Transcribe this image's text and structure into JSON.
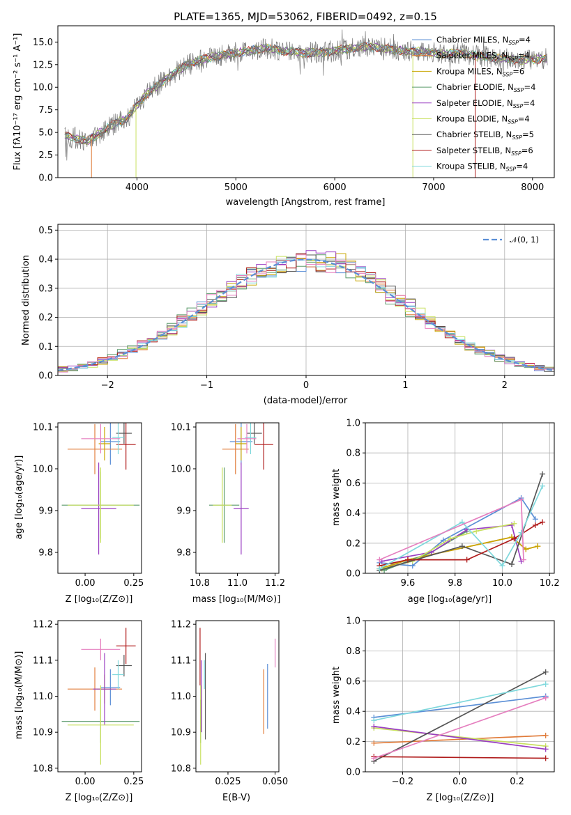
{
  "colors": {
    "Chabrier MILES": "#5b8fd6",
    "Salpeter MILES": "#e07b39",
    "Kroupa MILES": "#c8a600",
    "Chabrier ELODIE": "#5a9a6a",
    "Salpeter ELODIE": "#9a3fc2",
    "Kroupa ELODIE": "#c8e060",
    "Chabrier STELIB": "#555555",
    "Salpeter STELIB": "#b01c1c",
    "Kroupa STELIB": "#7fd8dc",
    "pink": "#e57fbf",
    "data": "#7a7a7a",
    "normal": "#5b8fd6"
  },
  "chart_data": [
    {
      "id": "spectrum",
      "type": "line",
      "title": "PLATE=1365, MJD=53062, FIBERID=0492, z=0.15",
      "xlabel": "wavelength [Angstrom, rest frame]",
      "ylabel": "Flux [fλ10⁻¹⁷ erg cm⁻² s⁻¹ A⁻¹]",
      "xlim": [
        3200,
        8220
      ],
      "ylim": [
        0,
        16.8
      ],
      "xticks": [
        "4000",
        "5000",
        "6000",
        "7000",
        "8000"
      ],
      "yticks": [
        "0.0",
        "2.5",
        "5.0",
        "7.5",
        "10.0",
        "12.5",
        "15.0"
      ],
      "continuum": {
        "x": [
          3300,
          3500,
          3700,
          3900,
          4100,
          4300,
          4500,
          4700,
          4900,
          5100,
          5300,
          5500,
          5700,
          5900,
          6100,
          6300,
          6500,
          6700,
          6900,
          7100,
          7300,
          7500,
          7700,
          7900,
          8100
        ],
        "y": [
          4.6,
          4.0,
          5.5,
          6.6,
          9.3,
          11.0,
          12.5,
          13.2,
          13.6,
          14.0,
          14.3,
          14.0,
          13.8,
          13.9,
          14.2,
          14.5,
          14.3,
          14.0,
          13.9,
          13.7,
          13.7,
          13.4,
          13.2,
          13.0,
          13.2
        ]
      },
      "legend": [
        {
          "name": "Chabrier MILES",
          "n": "4"
        },
        {
          "name": "Salpeter MILES",
          "n": "4"
        },
        {
          "name": "Kroupa MILES",
          "n": "6"
        },
        {
          "name": "Chabrier ELODIE",
          "n": "4"
        },
        {
          "name": "Salpeter ELODIE",
          "n": "4"
        },
        {
          "name": "Kroupa ELODIE",
          "n": "4"
        },
        {
          "name": "Chabrier STELIB",
          "n": "5"
        },
        {
          "name": "Salpeter STELIB",
          "n": "6"
        },
        {
          "name": "Kroupa STELIB",
          "n": "4"
        }
      ],
      "legend_suffix": "N",
      "legend_sub": "SSP",
      "legend_placement": "right"
    },
    {
      "id": "residuals",
      "type": "step",
      "xlabel": "(data-model)/error",
      "ylabel": "Normed distribution",
      "xlim": [
        -2.5,
        2.5
      ],
      "ylim": [
        0,
        0.52
      ],
      "xticks": [
        "−2",
        "−1",
        "0",
        "1",
        "2"
      ],
      "yticks": [
        "0.0",
        "0.1",
        "0.2",
        "0.3",
        "0.4",
        "0.5"
      ],
      "legend": "𝒩(0, 1)",
      "legend_placement": "top-right",
      "grid": true
    },
    {
      "id": "age_vs_Z",
      "type": "errorbar",
      "xlabel": "Z [log₁₀(Z/Z⊙)]",
      "ylabel": "age  [log₁₀(age/yr)]",
      "xlim": [
        -0.14,
        0.29
      ],
      "ylim": [
        9.75,
        10.11
      ],
      "xticks": [
        "0.00",
        "0.25"
      ],
      "yticks": [
        "9.8",
        "9.9",
        "10.0",
        "10.1"
      ],
      "points": [
        {
          "s": "Chabrier MILES",
          "x": 0.13,
          "y": 10.065,
          "xe": 0.05,
          "ye": 0.055
        },
        {
          "s": "Salpeter MILES",
          "x": 0.05,
          "y": 10.047,
          "xe": 0.14,
          "ye": 0.06
        },
        {
          "s": "Kroupa MILES",
          "x": 0.1,
          "y": 10.06,
          "xe": 0.03,
          "ye": 0.04
        },
        {
          "s": "Chabrier ELODIE",
          "x": 0.08,
          "y": 9.913,
          "xe": 0.2,
          "ye": 0.08
        },
        {
          "s": "Salpeter ELODIE",
          "x": 0.07,
          "y": 9.905,
          "xe": 0.09,
          "ye": 0.11
        },
        {
          "s": "Kroupa ELODIE",
          "x": 0.08,
          "y": 9.913,
          "xe": 0.17,
          "ye": 0.09
        },
        {
          "s": "Chabrier STELIB",
          "x": 0.2,
          "y": 10.085,
          "xe": 0.04,
          "ye": 0.025
        },
        {
          "s": "Salpeter STELIB",
          "x": 0.21,
          "y": 10.058,
          "xe": 0.05,
          "ye": 0.06
        },
        {
          "s": "Kroupa STELIB",
          "x": 0.17,
          "y": 10.075,
          "xe": 0.03,
          "ye": 0.04
        },
        {
          "s": "pink",
          "x": 0.08,
          "y": 10.072,
          "xe": 0.1,
          "ye": 0.035
        }
      ]
    },
    {
      "id": "age_vs_mass",
      "type": "errorbar",
      "xlabel": "mass [log₁₀(M/M⊙)]",
      "ylabel": "",
      "xlim": [
        10.78,
        11.22
      ],
      "ylim": [
        9.75,
        10.11
      ],
      "xticks": [
        "10.8",
        "11.0",
        "11.2"
      ],
      "yticks": [
        "9.8",
        "9.9",
        "10.0",
        "10.1"
      ],
      "points": [
        {
          "s": "Chabrier MILES",
          "x": 11.02,
          "y": 10.065,
          "xe": 0.06,
          "ye": 0.055
        },
        {
          "s": "Salpeter MILES",
          "x": 10.99,
          "y": 10.047,
          "xe": 0.07,
          "ye": 0.06
        },
        {
          "s": "Kroupa MILES",
          "x": 11.02,
          "y": 10.06,
          "xe": 0.03,
          "ye": 0.04
        },
        {
          "s": "Chabrier ELODIE",
          "x": 10.93,
          "y": 9.913,
          "xe": 0.08,
          "ye": 0.09
        },
        {
          "s": "Salpeter ELODIE",
          "x": 11.02,
          "y": 9.905,
          "xe": 0.04,
          "ye": 0.11
        },
        {
          "s": "Kroupa ELODIE",
          "x": 10.92,
          "y": 9.913,
          "xe": 0.05,
          "ye": 0.09
        },
        {
          "s": "Chabrier STELIB",
          "x": 11.09,
          "y": 10.085,
          "xe": 0.04,
          "ye": 0.025
        },
        {
          "s": "Salpeter STELIB",
          "x": 11.14,
          "y": 10.058,
          "xe": 0.05,
          "ye": 0.06
        },
        {
          "s": "Kroupa STELIB",
          "x": 11.07,
          "y": 10.075,
          "xe": 0.03,
          "ye": 0.04
        },
        {
          "s": "pink",
          "x": 11.05,
          "y": 10.072,
          "xe": 0.05,
          "ye": 0.035
        }
      ]
    },
    {
      "id": "weight_vs_age",
      "type": "line",
      "xlabel": "age  [log₁₀(age/yr)]",
      "ylabel": "mass weight",
      "xlim": [
        9.42,
        10.22
      ],
      "ylim": [
        0,
        1.0
      ],
      "xticks": [
        "9.6",
        "9.8",
        "10.0",
        "10.2"
      ],
      "yticks": [
        "0.0",
        "0.2",
        "0.4",
        "0.6",
        "0.8",
        "1.0"
      ],
      "grid": true,
      "series": [
        {
          "s": "Chabrier MILES",
          "x": [
            9.48,
            9.62,
            9.75,
            10.08,
            10.14
          ],
          "y": [
            0.07,
            0.05,
            0.22,
            0.5,
            0.36
          ]
        },
        {
          "s": "Salpeter MILES",
          "x": [
            9.49,
            9.6,
            10.04,
            10.1,
            10.15
          ],
          "y": [
            0.03,
            0.09,
            0.24,
            0.16,
            0.18
          ]
        },
        {
          "s": "Kroupa MILES",
          "x": [
            9.48,
            9.6,
            10.04,
            10.1,
            10.15
          ],
          "y": [
            0.03,
            0.09,
            0.24,
            0.16,
            0.18
          ]
        },
        {
          "s": "Chabrier ELODIE",
          "x": [
            9.5,
            9.7,
            9.85
          ],
          "y": [
            0.02,
            0.14,
            0.28
          ]
        },
        {
          "s": "Salpeter ELODIE",
          "x": [
            9.49,
            9.7,
            9.85,
            10.04,
            10.08
          ],
          "y": [
            0.08,
            0.14,
            0.29,
            0.32,
            0.08
          ]
        },
        {
          "s": "Kroupa ELODIE",
          "x": [
            9.49,
            9.62,
            9.78,
            9.89,
            10.05
          ],
          "y": [
            0.03,
            0.08,
            0.23,
            0.28,
            0.33
          ]
        },
        {
          "s": "Chabrier STELIB",
          "x": [
            9.48,
            9.83,
            10.04,
            10.17
          ],
          "y": [
            0.02,
            0.18,
            0.06,
            0.66
          ]
        },
        {
          "s": "Salpeter STELIB",
          "x": [
            9.48,
            9.6,
            9.85,
            10.05,
            10.14,
            10.17
          ],
          "y": [
            0.05,
            0.09,
            0.09,
            0.23,
            0.32,
            0.34
          ]
        },
        {
          "s": "Kroupa STELIB",
          "x": [
            9.48,
            9.83,
            10.0,
            10.08,
            10.17
          ],
          "y": [
            0.03,
            0.34,
            0.05,
            0.27,
            0.58
          ]
        },
        {
          "s": "pink",
          "x": [
            9.48,
            10.08,
            10.09
          ],
          "y": [
            0.09,
            0.49,
            0.09
          ]
        }
      ]
    },
    {
      "id": "mass_vs_Z",
      "type": "errorbar",
      "xlabel": "Z [log₁₀(Z/Z⊙)]",
      "ylabel": "mass [log₁₀(M/M⊙)]",
      "xlim": [
        -0.14,
        0.29
      ],
      "ylim": [
        10.79,
        11.21
      ],
      "xticks": [
        "0.00",
        "0.25"
      ],
      "yticks": [
        "10.8",
        "10.9",
        "11.0",
        "11.1",
        "11.2"
      ],
      "points": [
        {
          "s": "Chabrier MILES",
          "x": 0.13,
          "y": 11.025,
          "xe": 0.05,
          "ye": 0.05
        },
        {
          "s": "Salpeter MILES",
          "x": 0.05,
          "y": 11.02,
          "xe": 0.14,
          "ye": 0.06
        },
        {
          "s": "Kroupa MILES",
          "x": 0.1,
          "y": 11.02,
          "xe": 0.04,
          "ye": 0.04
        },
        {
          "s": "Chabrier ELODIE",
          "x": 0.08,
          "y": 10.93,
          "xe": 0.2,
          "ye": 0.06
        },
        {
          "s": "Salpeter ELODIE",
          "x": 0.1,
          "y": 11.02,
          "xe": 0.06,
          "ye": 0.1
        },
        {
          "s": "Kroupa ELODIE",
          "x": 0.08,
          "y": 10.92,
          "xe": 0.17,
          "ye": 0.11
        },
        {
          "s": "Chabrier STELIB",
          "x": 0.2,
          "y": 11.085,
          "xe": 0.04,
          "ye": 0.03
        },
        {
          "s": "Salpeter STELIB",
          "x": 0.21,
          "y": 11.14,
          "xe": 0.05,
          "ye": 0.05
        },
        {
          "s": "Kroupa STELIB",
          "x": 0.17,
          "y": 11.06,
          "xe": 0.03,
          "ye": 0.04
        },
        {
          "s": "pink",
          "x": 0.08,
          "y": 11.13,
          "xe": 0.1,
          "ye": 0.03
        }
      ]
    },
    {
      "id": "mass_vs_ebv",
      "type": "errorbar",
      "xlabel": "E(B-V)",
      "ylabel": "",
      "xlim": [
        0.008,
        0.052
      ],
      "ylim": [
        10.79,
        11.21
      ],
      "xticks": [
        "0.025",
        "0.050"
      ],
      "yticks": [
        "10.8",
        "10.9",
        "11.0",
        "11.1",
        "11.2"
      ],
      "points": [
        {
          "s": "Chabrier MILES",
          "x": 0.046,
          "y": 11.0,
          "xe": 0.0,
          "ye": 0.09
        },
        {
          "s": "Salpeter MILES",
          "x": 0.044,
          "y": 10.985,
          "xe": 0.0,
          "ye": 0.09
        },
        {
          "s": "Chabrier ELODIE",
          "x": 0.0105,
          "y": 10.93,
          "xe": 0.0,
          "ye": 0.06
        },
        {
          "s": "Salpeter ELODIE",
          "x": 0.011,
          "y": 11.0,
          "xe": 0.0,
          "ye": 0.1
        },
        {
          "s": "Kroupa ELODIE",
          "x": 0.0105,
          "y": 10.92,
          "xe": 0.0,
          "ye": 0.11
        },
        {
          "s": "Chabrier STELIB",
          "x": 0.013,
          "y": 11.0,
          "xe": 0.0,
          "ye": 0.12
        },
        {
          "s": "Salpeter STELIB",
          "x": 0.0102,
          "y": 11.11,
          "xe": 0.0,
          "ye": 0.08
        },
        {
          "s": "Kroupa STELIB",
          "x": 0.0125,
          "y": 11.06,
          "xe": 0.0,
          "ye": 0.04
        },
        {
          "s": "pink",
          "x": 0.05,
          "y": 11.12,
          "xe": 0.0,
          "ye": 0.04
        }
      ]
    },
    {
      "id": "weight_vs_Z",
      "type": "line",
      "xlabel": "Z [log₁₀(Z/Z⊙)]",
      "ylabel": "mass weight",
      "xlim": [
        -0.33,
        0.33
      ],
      "ylim": [
        0,
        1.0
      ],
      "xticks": [
        "−0.2",
        "0.0",
        "0.2"
      ],
      "yticks": [
        "0.0",
        "0.2",
        "0.4",
        "0.6",
        "0.8",
        "1.0"
      ],
      "grid": true,
      "series": [
        {
          "s": "Chabrier MILES",
          "x": [
            -0.3,
            0.3
          ],
          "y": [
            0.36,
            0.5
          ]
        },
        {
          "s": "Salpeter MILES",
          "x": [
            -0.3,
            0.3
          ],
          "y": [
            0.19,
            0.24
          ]
        },
        {
          "s": "Kroupa ELODIE",
          "x": [
            -0.3,
            0.3
          ],
          "y": [
            0.29,
            0.17
          ]
        },
        {
          "s": "Salpeter ELODIE",
          "x": [
            -0.3,
            0.3
          ],
          "y": [
            0.3,
            0.15
          ]
        },
        {
          "s": "Chabrier STELIB",
          "x": [
            -0.3,
            0.3
          ],
          "y": [
            0.07,
            0.66
          ]
        },
        {
          "s": "Salpeter STELIB",
          "x": [
            -0.3,
            0.3
          ],
          "y": [
            0.1,
            0.09
          ]
        },
        {
          "s": "Kroupa STELIB",
          "x": [
            -0.3,
            0.3
          ],
          "y": [
            0.34,
            0.58
          ]
        },
        {
          "s": "pink",
          "x": [
            -0.3,
            0.3
          ],
          "y": [
            0.09,
            0.49
          ]
        }
      ]
    }
  ]
}
